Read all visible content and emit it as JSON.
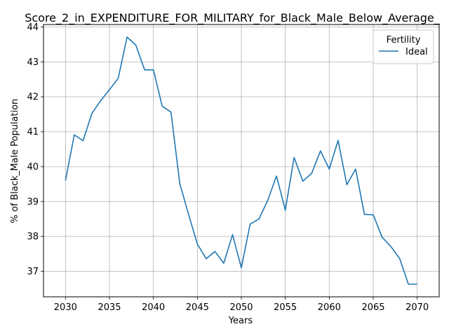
{
  "chart_data": {
    "type": "line",
    "title": "Score_2_in_EXPENDITURE_FOR_MILITARY_for_Black_Male_Below_Average_",
    "xlabel": "Years",
    "ylabel": "% of Black_Male Population",
    "xlim": [
      2027.5,
      2072.5
    ],
    "ylim": [
      36.27,
      44.07
    ],
    "xticks": [
      2030,
      2035,
      2040,
      2045,
      2050,
      2055,
      2060,
      2065,
      2070
    ],
    "yticks": [
      37,
      38,
      39,
      40,
      41,
      42,
      43,
      44
    ],
    "grid": true,
    "legend": {
      "title": "Fertility",
      "placement": "top-right"
    },
    "series": [
      {
        "name": "Ideal",
        "color": "#1f77b4",
        "x": [
          2030,
          2031,
          2032,
          2033,
          2034,
          2035,
          2036,
          2037,
          2038,
          2039,
          2040,
          2041,
          2042,
          2043,
          2044,
          2045,
          2046,
          2047,
          2048,
          2049,
          2050,
          2051,
          2052,
          2053,
          2054,
          2055,
          2056,
          2057,
          2058,
          2059,
          2060,
          2061,
          2062,
          2063,
          2064,
          2065,
          2066,
          2067,
          2068,
          2069,
          2070
        ],
        "y": [
          39.6,
          40.91,
          40.74,
          41.52,
          41.89,
          42.2,
          42.53,
          43.71,
          43.48,
          42.77,
          42.77,
          41.73,
          41.56,
          39.51,
          38.63,
          37.78,
          37.36,
          37.57,
          37.23,
          38.05,
          37.1,
          38.35,
          38.5,
          39.03,
          39.73,
          38.75,
          40.26,
          39.58,
          39.81,
          40.45,
          39.93,
          40.75,
          39.48,
          39.93,
          38.63,
          38.62,
          37.98,
          37.71,
          37.37,
          36.63,
          36.63
        ]
      }
    ]
  }
}
